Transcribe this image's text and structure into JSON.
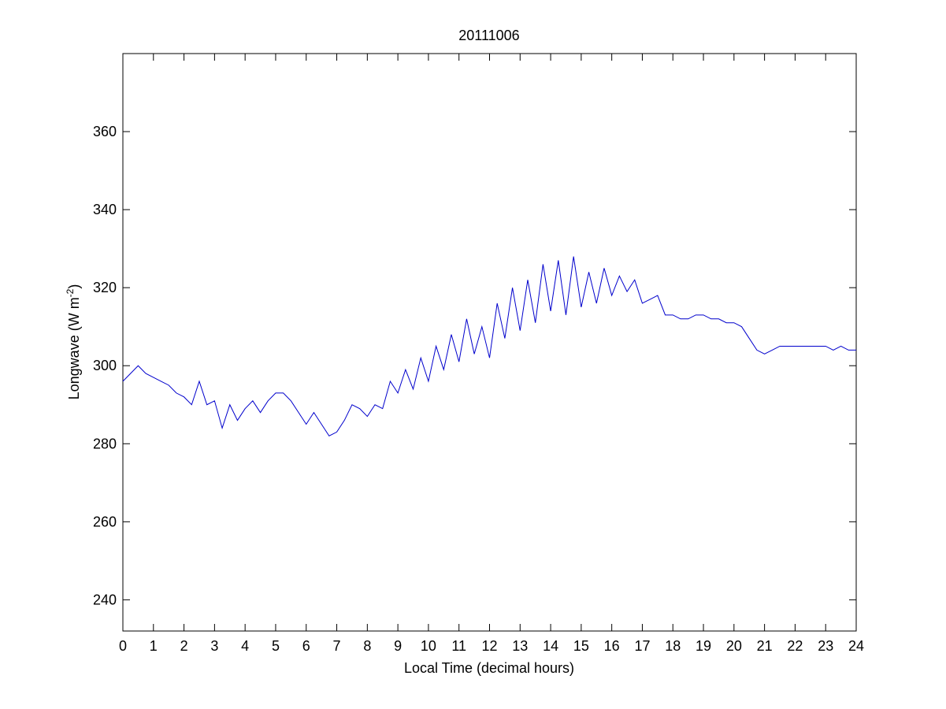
{
  "chart_data": {
    "type": "line",
    "title": "20111006",
    "xlabel": "Local Time (decimal hours)",
    "ylabel": {
      "text": "Longwave (W m",
      "superscript": "-2",
      "suffix": ")"
    },
    "xlim": [
      0,
      24
    ],
    "ylim": [
      232,
      380
    ],
    "xticks": [
      0,
      1,
      2,
      3,
      4,
      5,
      6,
      7,
      8,
      9,
      10,
      11,
      12,
      13,
      14,
      15,
      16,
      17,
      18,
      19,
      20,
      21,
      22,
      23,
      24
    ],
    "yticks": [
      240,
      260,
      280,
      300,
      320,
      340,
      360
    ],
    "series": [
      {
        "color": "#0000cc",
        "x": [
          0,
          0.25,
          0.5,
          0.75,
          1,
          1.25,
          1.5,
          1.75,
          2,
          2.25,
          2.5,
          2.75,
          3,
          3.25,
          3.5,
          3.75,
          4,
          4.25,
          4.5,
          4.75,
          5,
          5.25,
          5.5,
          5.75,
          6,
          6.25,
          6.5,
          6.75,
          7,
          7.25,
          7.5,
          7.75,
          8,
          8.25,
          8.5,
          8.75,
          9,
          9.25,
          9.5,
          9.75,
          10,
          10.25,
          10.5,
          10.75,
          11,
          11.25,
          11.5,
          11.75,
          12,
          12.25,
          12.5,
          12.75,
          13,
          13.25,
          13.5,
          13.75,
          14,
          14.25,
          14.5,
          14.75,
          15,
          15.25,
          15.5,
          15.75,
          16,
          16.25,
          16.5,
          16.75,
          17,
          17.25,
          17.5,
          17.75,
          18,
          18.25,
          18.5,
          18.75,
          19,
          19.25,
          19.5,
          19.75,
          20,
          20.25,
          20.5,
          20.75,
          21,
          21.25,
          21.5,
          21.75,
          22,
          22.25,
          22.5,
          22.75,
          23,
          23.25,
          23.5,
          23.75,
          24
        ],
        "values": [
          296,
          298,
          300,
          298,
          297,
          296,
          295,
          293,
          292,
          290,
          296,
          290,
          291,
          284,
          290,
          286,
          289,
          291,
          288,
          291,
          293,
          293,
          291,
          288,
          285,
          288,
          285,
          282,
          283,
          286,
          290,
          289,
          287,
          290,
          289,
          296,
          293,
          299,
          294,
          302,
          296,
          305,
          299,
          308,
          301,
          312,
          303,
          310,
          302,
          316,
          307,
          320,
          309,
          322,
          311,
          326,
          314,
          327,
          313,
          328,
          315,
          324,
          316,
          325,
          318,
          323,
          319,
          322,
          316,
          317,
          318,
          313,
          313,
          312,
          312,
          313,
          313,
          312,
          312,
          311,
          311,
          310,
          307,
          304,
          303,
          304,
          305,
          305,
          305,
          305,
          305,
          305,
          305,
          304,
          305,
          304,
          304
        ]
      }
    ]
  }
}
